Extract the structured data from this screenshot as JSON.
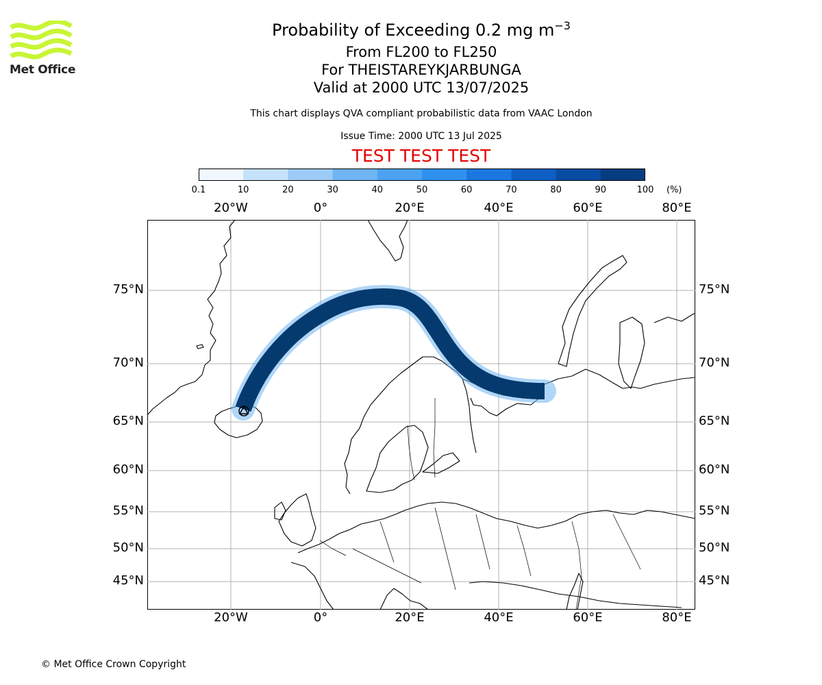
{
  "logo": {
    "text": "Met Office",
    "color": "#c8f536"
  },
  "title": {
    "main_prefix": "Probability of Exceeding 0.2 mg m",
    "main_sup": "−3",
    "level": "From FL200 to FL250",
    "volcano": "For THEISTAREYKJARBUNGA",
    "valid": "Valid at 2000 UTC 13/07/2025",
    "note": "This chart displays QVA compliant probabilistic data from VAAC London",
    "issue": "Issue Time: 2000 UTC 13 Jul 2025",
    "test": "TEST TEST TEST"
  },
  "colorbar": {
    "labels": [
      "0.1",
      "10",
      "20",
      "30",
      "40",
      "50",
      "60",
      "70",
      "80",
      "90",
      "100"
    ],
    "unit": "(%)",
    "colors": [
      "#f0f7fe",
      "#c6e2fb",
      "#9ccbf7",
      "#6fb4f3",
      "#4aa2f0",
      "#2f90ee",
      "#1b77e0",
      "#0e5fc4",
      "#084da3",
      "#063d80",
      "#042a5c"
    ]
  },
  "map": {
    "lon_labels": [
      "20°W",
      "0°",
      "20°E",
      "40°E",
      "60°E",
      "80°E"
    ],
    "lat_labels": [
      "75°N",
      "70°N",
      "65°N",
      "60°N",
      "55°N",
      "50°N",
      "45°N"
    ],
    "plume_color": "#053a6e",
    "plume_edge_color": "#6fb4f3",
    "source_marker": "volcano-symbol"
  },
  "footer": {
    "copyright": "© Met Office Crown Copyright"
  }
}
